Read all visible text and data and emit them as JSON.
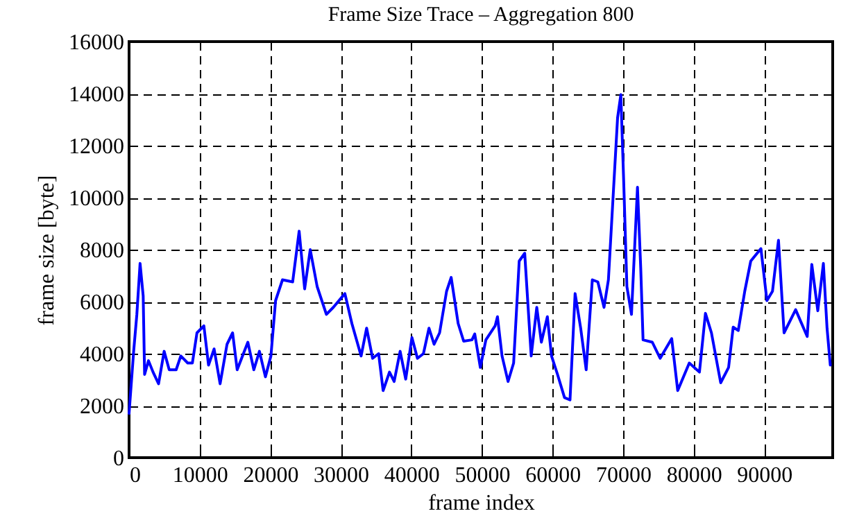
{
  "chart_data": {
    "type": "line",
    "title": "Frame Size Trace – Aggregation 800",
    "xlabel": "frame index",
    "ylabel": "frame size [byte]",
    "x": [
      0,
      650,
      1100,
      1560,
      2000,
      2200,
      2750,
      3400,
      4180,
      4970,
      5690,
      6670,
      7330,
      8310,
      8970,
      9620,
      10600,
      11260,
      12050,
      12900,
      13880,
      14670,
      15320,
      16830,
      17680,
      18470,
      19320,
      20100,
      20760,
      21740,
      23180,
      24100,
      24880,
      25670,
      26650,
      27960,
      28940,
      30580,
      31570,
      32880,
      33660,
      34510,
      35360,
      36000,
      36900,
      37560,
      38410,
      39200,
      40080,
      40860,
      41710,
      42500,
      43220,
      44000,
      44990,
      45640,
      46630,
      47410,
      48590,
      48980,
      49770,
      50560,
      51870,
      52200,
      52850,
      53700,
      54490,
      55280,
      56060,
      56980,
      57770,
      58420,
      59270,
      59860,
      60710,
      61700,
      62480,
      63200,
      63990,
      64770,
      65640,
      66420,
      67300,
      67920,
      68570,
      69220,
      69680,
      70080,
      70540,
      71190,
      72040,
      72500,
      72830,
      74140,
      75250,
      76890,
      77740,
      79380,
      80820,
      81670,
      82520,
      83830,
      84950,
      85600,
      86320,
      87240,
      88090,
      89530,
      90380,
      91170,
      92020,
      92810,
      94450,
      96090,
      96740,
      97590,
      98380,
      98900,
      99360
    ],
    "series": [
      {
        "color": "#0000ff",
        "values": [
          1700,
          4090,
          5500,
          7470,
          6220,
          3200,
          3730,
          3290,
          2840,
          4090,
          3380,
          3380,
          3910,
          3640,
          3640,
          4800,
          5070,
          3560,
          4180,
          2840,
          4360,
          4800,
          3380,
          4440,
          3380,
          4090,
          3110,
          3910,
          6040,
          6840,
          6760,
          8710,
          6490,
          8000,
          6580,
          5510,
          5780,
          6310,
          5160,
          3910,
          4980,
          3820,
          4000,
          2580,
          3290,
          2930,
          4090,
          3020,
          4620,
          3820,
          4000,
          4980,
          4360,
          4800,
          6400,
          6930,
          5160,
          4480,
          4530,
          4760,
          3470,
          4530,
          5070,
          5420,
          3910,
          2930,
          3640,
          7560,
          7860,
          3910,
          5780,
          4440,
          5420,
          3910,
          3200,
          2310,
          2220,
          6310,
          4980,
          3380,
          6840,
          6760,
          5780,
          6840,
          9960,
          13070,
          13960,
          10670,
          6580,
          5510,
          10400,
          7290,
          4530,
          4440,
          3820,
          4580,
          2580,
          3640,
          3290,
          5550,
          4800,
          2880,
          3470,
          5020,
          4890,
          6400,
          7560,
          8040,
          6040,
          6400,
          8360,
          4800,
          5690,
          4660,
          7430,
          5650,
          7470,
          4980,
          3560
        ]
      }
    ],
    "xlim": [
      0,
      99700
    ],
    "ylim": [
      0,
      16000
    ],
    "xticks": [
      0,
      10000,
      20000,
      30000,
      40000,
      50000,
      60000,
      70000,
      80000,
      90000
    ],
    "yticks": [
      0,
      2000,
      4000,
      6000,
      8000,
      10000,
      12000,
      14000,
      16000
    ],
    "grid": true,
    "marker": "none",
    "line_style": "solid"
  }
}
